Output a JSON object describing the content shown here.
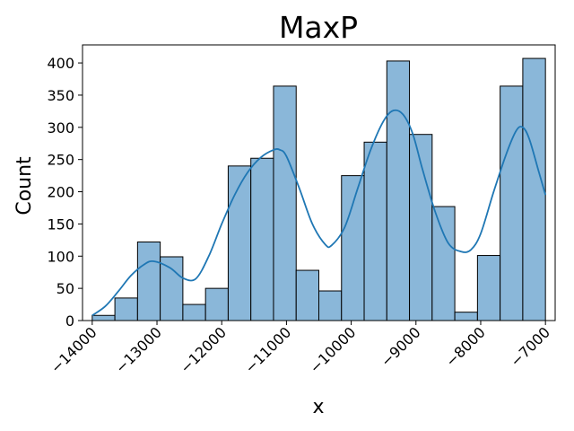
{
  "chart_data": {
    "type": "bar",
    "title": "MaxP",
    "xlabel": "x",
    "ylabel": "Count",
    "xlim": [
      -14150,
      -6850
    ],
    "ylim": [
      0,
      428
    ],
    "x_ticks": [
      -14000,
      -13000,
      -12000,
      -11000,
      -10000,
      -9000,
      -8000,
      -7000
    ],
    "x_tick_labels": [
      "−14000",
      "−13000",
      "−12000",
      "−11000",
      "−10000",
      "−9000",
      "−8000",
      "−7000"
    ],
    "y_ticks": [
      0,
      50,
      100,
      150,
      200,
      250,
      300,
      350,
      400
    ],
    "y_tick_labels": [
      "0",
      "50",
      "100",
      "150",
      "200",
      "250",
      "300",
      "350",
      "400"
    ],
    "bin_edges": [
      -14000,
      -13650,
      -13300,
      -12950,
      -12600,
      -12250,
      -11900,
      -11550,
      -11200,
      -10850,
      -10500,
      -10150,
      -9800,
      -9450,
      -9100,
      -8750,
      -8400,
      -8050,
      -7700,
      -7350,
      -7000
    ],
    "values": [
      8,
      35,
      122,
      99,
      25,
      50,
      240,
      252,
      364,
      78,
      46,
      225,
      277,
      403,
      289,
      177,
      13,
      101,
      364,
      407
    ],
    "kde": {
      "x": [
        -14000,
        -13800,
        -13600,
        -13400,
        -13200,
        -13050,
        -12800,
        -12600,
        -12400,
        -12200,
        -12000,
        -11800,
        -11600,
        -11400,
        -11200,
        -11100,
        -11000,
        -10800,
        -10600,
        -10400,
        -10300,
        -10100,
        -9900,
        -9700,
        -9500,
        -9350,
        -9200,
        -9050,
        -8900,
        -8700,
        -8500,
        -8300,
        -8150,
        -8000,
        -7800,
        -7600,
        -7450,
        -7350,
        -7250,
        -7100,
        -7000
      ],
      "y": [
        8,
        22,
        45,
        70,
        87,
        92,
        82,
        66,
        65,
        100,
        150,
        195,
        230,
        253,
        265,
        265,
        255,
        205,
        150,
        118,
        117,
        145,
        205,
        265,
        310,
        326,
        320,
        290,
        235,
        168,
        120,
        107,
        110,
        135,
        200,
        260,
        295,
        300,
        282,
        230,
        195
      ]
    },
    "bar_color": "#8ab7d9",
    "bar_edge_color": "#000000",
    "line_color": "#1f77b4",
    "grid": false,
    "legend": "none"
  }
}
